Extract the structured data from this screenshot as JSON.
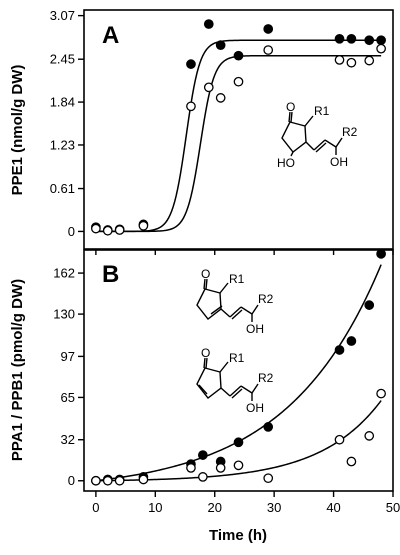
{
  "chart_data": [
    {
      "type": "scatter",
      "panel_label": "A",
      "ylabel": "PPE1",
      "ylabel_sub": "1",
      "ylabel_unit": "(nmol/g DW)",
      "xlim": [
        -2,
        50
      ],
      "ylim": [
        -0.25,
        3.15
      ],
      "yticks": [
        0,
        0.61,
        1.23,
        1.84,
        2.45,
        3.07
      ],
      "ytick_labels": [
        "0",
        "0.61",
        "1.23",
        "1.84",
        "2.45",
        "3.07"
      ],
      "grid": false,
      "series": [
        {
          "marker": "filled-circle",
          "x": [
            0,
            2,
            4,
            8,
            16,
            19,
            21,
            24,
            29,
            41,
            43,
            46,
            48
          ],
          "y": [
            0.06,
            0.02,
            0.03,
            0.1,
            2.38,
            2.95,
            2.65,
            2.5,
            2.88,
            2.74,
            2.74,
            2.72,
            2.72
          ]
        },
        {
          "marker": "open-circle",
          "x": [
            0,
            2,
            4,
            8,
            16,
            19,
            21,
            24,
            29,
            41,
            43,
            46,
            48
          ],
          "y": [
            0.04,
            0.01,
            0.02,
            0.08,
            1.78,
            2.05,
            1.9,
            2.13,
            2.58,
            2.44,
            2.4,
            2.43,
            2.6
          ]
        }
      ],
      "fits": [
        {
          "a": 2.72,
          "x0": 15.2,
          "b": 1.15
        },
        {
          "a": 2.5,
          "x0": 17.6,
          "b": 1.15
        }
      ],
      "structure": {
        "r1": "R1",
        "r2": "R2",
        "oh_ring": "HO",
        "oh_chain": "OH"
      }
    },
    {
      "type": "scatter",
      "panel_label": "B",
      "ylabel": "PPA1 / PPB1",
      "ylabel_unit": "(pmol/g DW)",
      "xlabel": "Time (h)",
      "xlim": [
        -2,
        50
      ],
      "ylim": [
        -8,
        180
      ],
      "xticks": [
        0,
        10,
        20,
        30,
        40,
        50
      ],
      "xtick_labels": [
        "0",
        "10",
        "20",
        "30",
        "40",
        "50"
      ],
      "yticks": [
        0,
        32,
        65,
        97,
        130,
        162
      ],
      "ytick_labels": [
        "0",
        "32",
        "65",
        "97",
        "130",
        "162"
      ],
      "grid": false,
      "series": [
        {
          "marker": "filled-circle",
          "x": [
            0,
            2,
            4,
            8,
            16,
            18,
            21,
            24,
            29,
            41,
            43,
            46,
            48
          ],
          "y": [
            0,
            1,
            1,
            3,
            13,
            20,
            15,
            30,
            42,
            102,
            109,
            137,
            177
          ]
        },
        {
          "marker": "open-circle",
          "x": [
            0,
            2,
            4,
            8,
            16,
            18,
            21,
            24,
            29,
            41,
            43,
            46,
            48
          ],
          "y": [
            0,
            0,
            0,
            1,
            10,
            3,
            10,
            12,
            2,
            32,
            15,
            35,
            68
          ]
        }
      ],
      "fits": [
        {
          "a": 8.7,
          "b": 0.0628
        },
        {
          "a": 0.58,
          "b": 0.0977
        }
      ],
      "structures": [
        {
          "r1": "R1",
          "r2": "R2",
          "oh_chain": "OH"
        },
        {
          "r1": "R1",
          "r2": "R2",
          "oh_chain": "OH"
        }
      ]
    }
  ]
}
